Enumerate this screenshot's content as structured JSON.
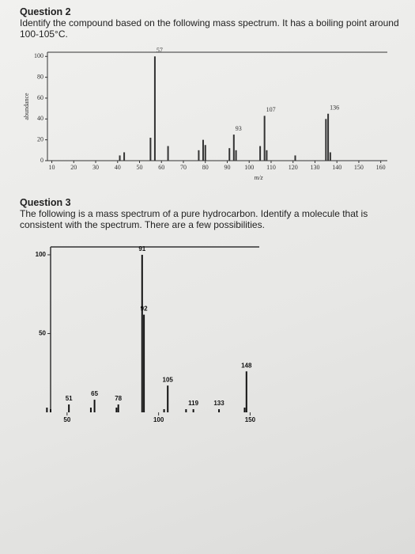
{
  "questions": [
    {
      "title": "Question 2",
      "text": "Identify the compound based on the following mass spectrum. It has a boiling point around 100-105°C."
    },
    {
      "title": "Question 3",
      "text": "The following is a mass spectrum of a pure hydrocarbon. Identify a molecule that is consistent with the spectrum. There are a few possibilities."
    }
  ],
  "chart_data": [
    {
      "type": "bar",
      "ylabel": "abundance",
      "xlabel": "m/z",
      "color": "#333333",
      "x": [
        41,
        43,
        55,
        57,
        63,
        77,
        79,
        80,
        91,
        93,
        94,
        105,
        107,
        108,
        121,
        135,
        136,
        137
      ],
      "values": [
        5,
        8,
        22,
        100,
        14,
        10,
        20,
        15,
        12,
        25,
        10,
        14,
        43,
        10,
        5,
        40,
        45,
        8
      ],
      "xlim": [
        8,
        163
      ],
      "ylim": [
        0,
        104
      ],
      "xticks": [
        10,
        20,
        30,
        40,
        50,
        60,
        70,
        80,
        90,
        100,
        110,
        120,
        130,
        140,
        150,
        160
      ],
      "yticks": [
        0,
        20,
        40,
        60,
        80,
        100
      ],
      "annotations": [
        {
          "text": "57",
          "x": 57,
          "y": 100
        },
        {
          "text": "93",
          "x": 93,
          "y": 25
        },
        {
          "text": "107",
          "x": 107,
          "y": 43
        },
        {
          "text": "136",
          "x": 136,
          "y": 45
        }
      ]
    },
    {
      "type": "bar",
      "color": "#111111",
      "x": [
        39,
        41,
        51,
        63,
        65,
        77,
        78,
        91,
        92,
        103,
        105,
        115,
        119,
        133,
        147,
        148
      ],
      "values": [
        3,
        2,
        5,
        3,
        8,
        3,
        5,
        100,
        62,
        2,
        17,
        2,
        2,
        2,
        3,
        26
      ],
      "xlim": [
        41,
        155
      ],
      "ylim": [
        0,
        105
      ],
      "xticks": [
        50,
        100,
        150
      ],
      "yticks": [
        50,
        100
      ],
      "annotations": [
        {
          "text": "51",
          "x": 51,
          "y": 5
        },
        {
          "text": "65",
          "x": 65,
          "y": 8
        },
        {
          "text": "78",
          "x": 78,
          "y": 5
        },
        {
          "text": "91",
          "x": 91,
          "y": 100
        },
        {
          "text": "92",
          "x": 92,
          "y": 62
        },
        {
          "text": "105",
          "x": 105,
          "y": 17
        },
        {
          "text": "119",
          "x": 119,
          "y": 2
        },
        {
          "text": "133",
          "x": 133,
          "y": 2
        },
        {
          "text": "148",
          "x": 148,
          "y": 26
        }
      ]
    }
  ]
}
